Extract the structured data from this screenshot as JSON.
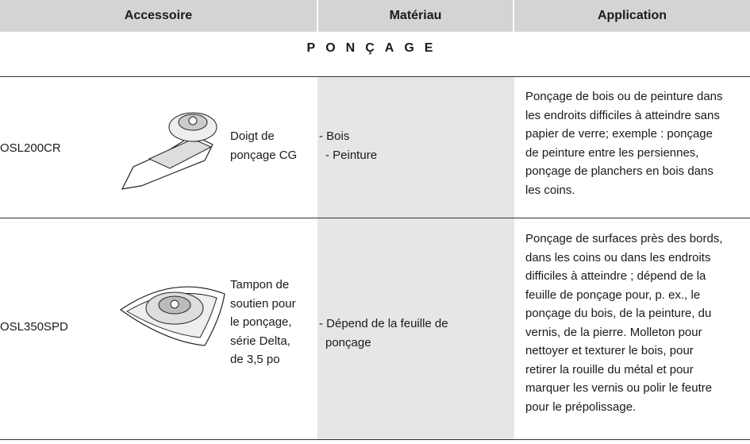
{
  "table": {
    "headers": [
      "Accessoire",
      "Matériau",
      "Application"
    ],
    "section": "PONÇAGE",
    "rows": [
      {
        "code": "OSL200CR",
        "name": [
          "Doigt de",
          "ponçage CG"
        ],
        "material": [
          "- Bois",
          "- Peinture"
        ],
        "application": [
          "Ponçage de bois ou de peinture dans",
          "les endroits difficiles à atteindre sans",
          "papier de verre; exemple : ponçage",
          "de peinture entre les persiennes,",
          "ponçage de planchers en bois dans",
          "les coins."
        ]
      },
      {
        "code": "OSL350SPD",
        "name": [
          "Tampon de",
          "soutien pour",
          "le ponçage,",
          "série Delta,",
          "de 3,5 po"
        ],
        "material": [
          "- Dépend de la feuille de",
          "ponçage"
        ],
        "application": [
          "Ponçage de surfaces près des bords,",
          "dans les coins ou dans les endroits",
          "difficiles à atteindre ; dépend de la",
          "feuille de ponçage pour, p. ex., le",
          "ponçage du bois, de la peinture, du",
          "vernis, de la pierre. Molleton pour",
          "nettoyer et texturer le bois, pour",
          "retirer la rouille du métal et pour",
          "marquer les vernis ou polir le feutre",
          "pour le prépolissage."
        ]
      }
    ]
  }
}
